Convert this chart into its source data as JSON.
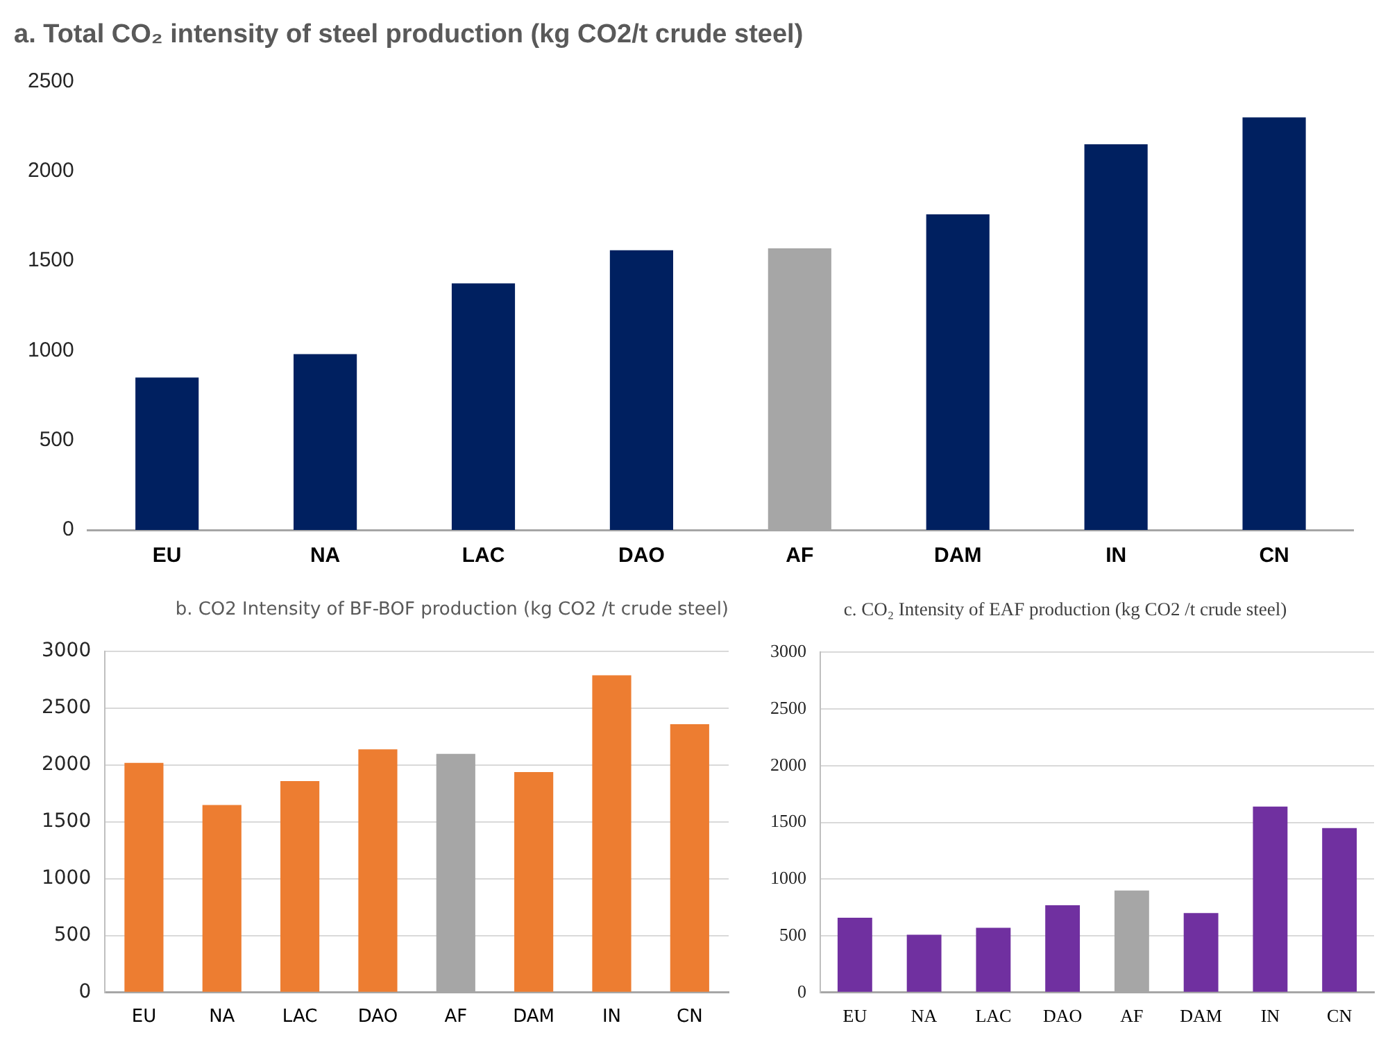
{
  "chart_data": [
    {
      "type": "bar",
      "title": "a. Total CO₂ intensity of steel production (kg CO2/t crude steel)",
      "categories": [
        "EU",
        "NA",
        "LAC",
        "DAO",
        "AF",
        "DAM",
        "IN",
        "CN"
      ],
      "values": [
        850,
        980,
        1375,
        1560,
        1570,
        1760,
        2150,
        2300
      ],
      "colors": [
        "#002060",
        "#002060",
        "#002060",
        "#002060",
        "#a6a6a6",
        "#002060",
        "#002060",
        "#002060"
      ],
      "ylim": [
        0,
        2500
      ],
      "yticks": [
        0,
        500,
        1000,
        1500,
        2000,
        2500
      ],
      "grid": false,
      "legend": false
    },
    {
      "type": "bar",
      "title": "b. CO2 Intensity of BF-BOF production (kg CO2 /t crude steel)",
      "categories": [
        "EU",
        "NA",
        "LAC",
        "DAO",
        "AF",
        "DAM",
        "IN",
        "CN"
      ],
      "values": [
        2020,
        1650,
        1860,
        2140,
        2100,
        1940,
        2790,
        2360
      ],
      "colors": [
        "#ed7d31",
        "#ed7d31",
        "#ed7d31",
        "#ed7d31",
        "#a6a6a6",
        "#ed7d31",
        "#ed7d31",
        "#ed7d31"
      ],
      "ylim": [
        0,
        3000
      ],
      "yticks": [
        0,
        500,
        1000,
        1500,
        2000,
        2500,
        3000
      ],
      "grid": "y",
      "legend": false
    },
    {
      "type": "bar",
      "title": "c. CO₂ Intensity of EAF production (kg CO2 /t crude steel)",
      "categories": [
        "EU",
        "NA",
        "LAC",
        "DAO",
        "AF",
        "DAM",
        "IN",
        "CN"
      ],
      "values": [
        660,
        510,
        570,
        770,
        900,
        700,
        1640,
        1450
      ],
      "colors": [
        "#7030a0",
        "#7030a0",
        "#7030a0",
        "#7030a0",
        "#a6a6a6",
        "#7030a0",
        "#7030a0",
        "#7030a0"
      ],
      "ylim": [
        0,
        3000
      ],
      "yticks": [
        0,
        500,
        1000,
        1500,
        2000,
        2500,
        3000
      ],
      "grid": "y",
      "legend": false
    }
  ]
}
